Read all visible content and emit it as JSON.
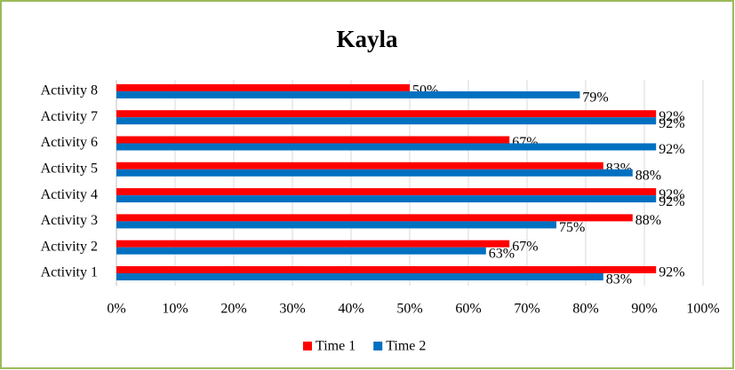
{
  "chart_data": {
    "type": "hbar",
    "title": "Kayla",
    "categories": [
      "Activity 1",
      "Activity 2",
      "Activity 3",
      "Activity 4",
      "Activity 5",
      "Activity 6",
      "Activity 7",
      "Activity 8"
    ],
    "series": [
      {
        "name": "Time 1",
        "color": "#ff0000",
        "values": [
          92,
          67,
          88,
          92,
          83,
          67,
          92,
          50
        ],
        "value_labels": [
          "92%",
          "67%",
          "88%",
          "92%",
          "83%",
          "67%",
          "92%",
          "50%"
        ]
      },
      {
        "name": "Time 2",
        "color": "#0070c0",
        "values": [
          83,
          63,
          75,
          92,
          88,
          92,
          92,
          79
        ],
        "value_labels": [
          "83%",
          "63%",
          "75%",
          "92%",
          "88%",
          "92%",
          "92%",
          "79%"
        ]
      }
    ],
    "xlim": [
      0,
      100
    ],
    "xticks": [
      {
        "value": 0,
        "label": "0%"
      },
      {
        "value": 10,
        "label": "10%"
      },
      {
        "value": 20,
        "label": "20%"
      },
      {
        "value": 30,
        "label": "30%"
      },
      {
        "value": 40,
        "label": "40%"
      },
      {
        "value": 50,
        "label": "50%"
      },
      {
        "value": 60,
        "label": "60%"
      },
      {
        "value": 70,
        "label": "70%"
      },
      {
        "value": 80,
        "label": "80%"
      },
      {
        "value": 90,
        "label": "90%"
      },
      {
        "value": 100,
        "label": "100%"
      }
    ],
    "grid": true,
    "legend": "bottom"
  }
}
